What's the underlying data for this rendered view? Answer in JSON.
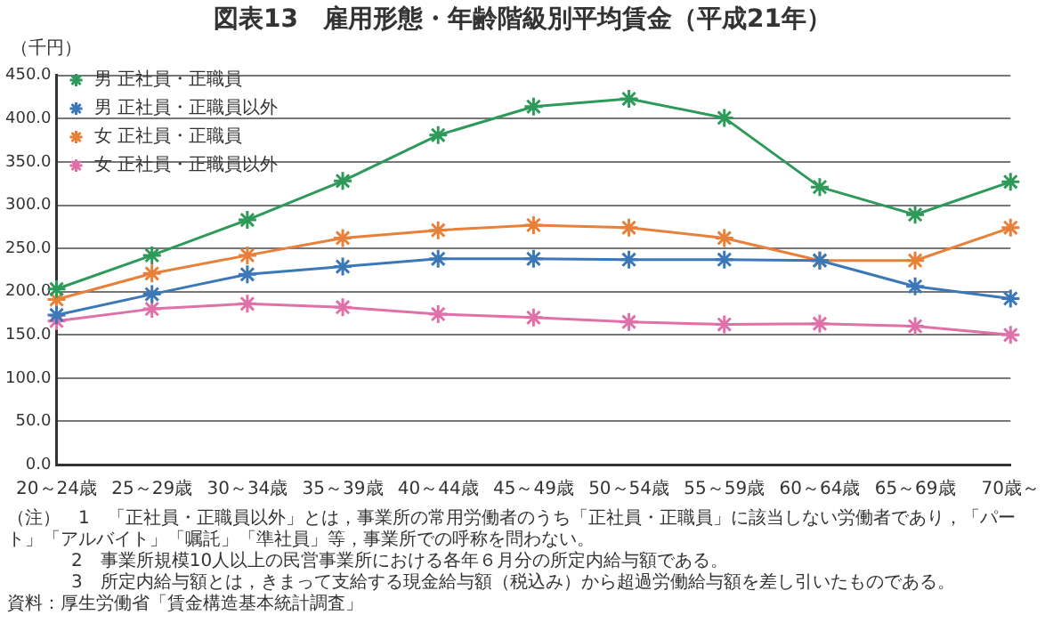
{
  "chart_data": {
    "type": "line",
    "title": "図表13　雇用形態・年齢階級別平均賃金（平成21年）",
    "ylabel": "（千円）",
    "categories": [
      "20～24歳",
      "25～29歳",
      "30～34歳",
      "35～39歳",
      "40～44歳",
      "45～49歳",
      "50～54歳",
      "55～59歳",
      "60～64歳",
      "65～69歳",
      "70歳～"
    ],
    "series": [
      {
        "name": "男 正社員・正職員",
        "color": "#2e9a5a",
        "values": [
          203,
          242,
          283,
          328,
          381,
          414,
          423,
          401,
          321,
          289,
          327
        ]
      },
      {
        "name": "男 正社員・正職員以外",
        "color": "#3a78b8",
        "values": [
          173,
          197,
          220,
          229,
          238,
          238,
          237,
          237,
          236,
          206,
          192
        ]
      },
      {
        "name": "女 正社員・正職員",
        "color": "#e8803a",
        "values": [
          191,
          221,
          242,
          262,
          271,
          277,
          274,
          262,
          236,
          236,
          274
        ]
      },
      {
        "name": "女 正社員・正職員以外",
        "color": "#e070a8",
        "values": [
          166,
          180,
          186,
          182,
          174,
          170,
          165,
          162,
          163,
          160,
          150
        ]
      }
    ],
    "ylim": [
      0,
      450
    ],
    "yticks": [
      {
        "value": 0,
        "label": "0.0"
      },
      {
        "value": 50,
        "label": "50.0"
      },
      {
        "value": 100,
        "label": "100.0"
      },
      {
        "value": 150,
        "label": "150.0"
      },
      {
        "value": 200,
        "label": "200.0"
      },
      {
        "value": 250,
        "label": "250.0"
      },
      {
        "value": 300,
        "label": "300.0"
      },
      {
        "value": 350,
        "label": "350.0"
      },
      {
        "value": 400,
        "label": "400.0"
      },
      {
        "value": 450,
        "label": "450.0"
      }
    ],
    "grid": "y",
    "legend": "top left",
    "marker": "cross",
    "line_style": "solid",
    "annotations": [
      "（注）　1　「正社員・正職員以外」とは，事業所の常用労働者のうち「正社員・正職員」に該当しない労働者であり，「パート」「アルバイト」「嘱託」「準社員」等，事業所での呼称を問わない。",
      "2　事業所規模10人以上の民営事業所における各年６月分の所定内給与額である。",
      "3　所定内給与額とは，きまって支給する現金給与額（税込み）から超過労働給与額を差し引いたものである。",
      "資料：厚生労働省「賃金構造基本統計調査」"
    ]
  }
}
